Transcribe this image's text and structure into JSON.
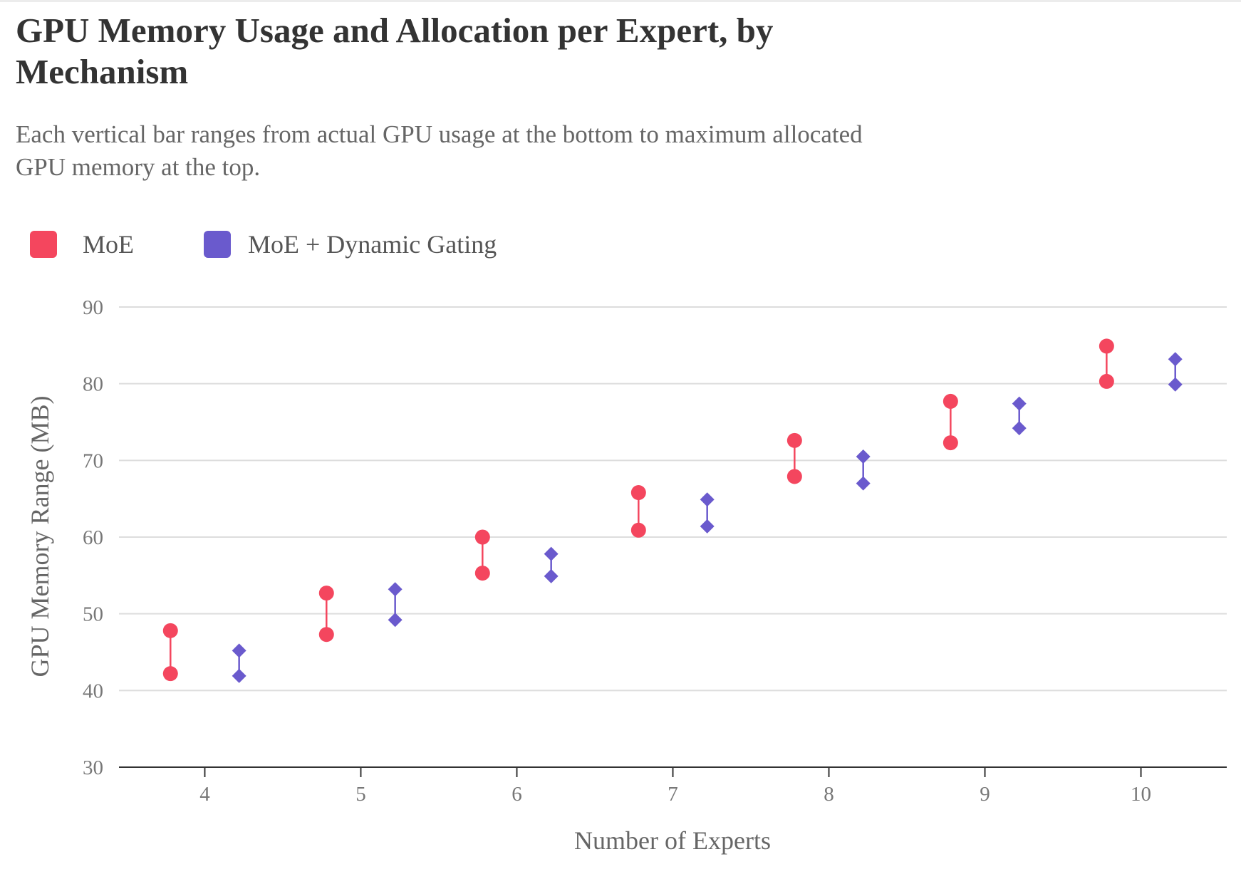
{
  "title": "GPU Memory Usage and Allocation per Expert, by Mechanism",
  "subtitle": "Each vertical bar ranges from actual GPU usage at the bottom to maximum allocated GPU memory at the top.",
  "legend": [
    {
      "label": "MoE",
      "color": "#f4465e",
      "marker": "circle"
    },
    {
      "label": "MoE + Dynamic Gating",
      "color": "#6a5acd",
      "marker": "diamond"
    }
  ],
  "chart_data": {
    "type": "dumbbell",
    "xlabel": "Number of Experts",
    "ylabel": "GPU Memory Range (MB)",
    "xlim": [
      3.45,
      10.55
    ],
    "ylim": [
      30,
      90
    ],
    "xticks": [
      4,
      5,
      6,
      7,
      8,
      9,
      10
    ],
    "yticks": [
      30,
      40,
      50,
      60,
      70,
      80,
      90
    ],
    "grid": true,
    "legend_position": "top-left",
    "series": [
      {
        "name": "MoE",
        "color": "#f4465e",
        "marker": "circle",
        "points": [
          {
            "x": 4,
            "low": 42.2,
            "high": 47.8
          },
          {
            "x": 5,
            "low": 47.3,
            "high": 52.7
          },
          {
            "x": 6,
            "low": 55.3,
            "high": 60.0
          },
          {
            "x": 7,
            "low": 60.9,
            "high": 65.8
          },
          {
            "x": 8,
            "low": 67.9,
            "high": 72.6
          },
          {
            "x": 9,
            "low": 72.3,
            "high": 77.7
          },
          {
            "x": 10,
            "low": 80.3,
            "high": 84.9
          }
        ]
      },
      {
        "name": "MoE + Dynamic Gating",
        "color": "#6a5acd",
        "marker": "diamond",
        "points": [
          {
            "x": 4,
            "low": 41.9,
            "high": 45.2
          },
          {
            "x": 5,
            "low": 49.2,
            "high": 53.2
          },
          {
            "x": 6,
            "low": 54.9,
            "high": 57.8
          },
          {
            "x": 7,
            "low": 61.4,
            "high": 64.9
          },
          {
            "x": 8,
            "low": 67.0,
            "high": 70.5
          },
          {
            "x": 9,
            "low": 74.2,
            "high": 77.4
          },
          {
            "x": 10,
            "low": 79.9,
            "high": 83.2
          }
        ]
      }
    ]
  }
}
